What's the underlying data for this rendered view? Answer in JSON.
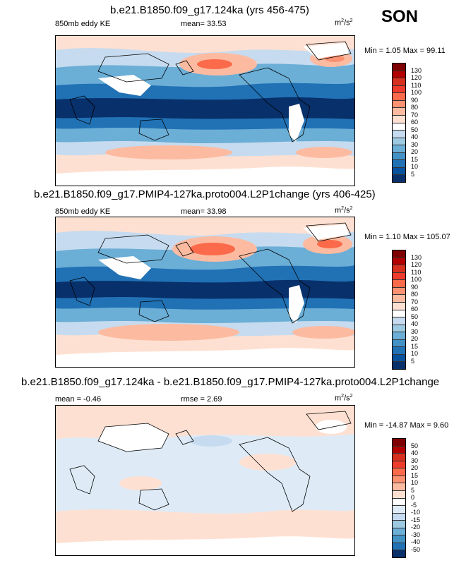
{
  "season": "SON",
  "panels": [
    {
      "title": "b.e21.B1850.f09_g17.124ka (yrs 456-475)",
      "left_label": "850mb eddy KE",
      "center_label": "mean=  33.53",
      "units": {
        "base": "m",
        "exp1": "2",
        "mid": "/s",
        "exp2": "2"
      },
      "minmax": "Min =  1.05 Max = 99.11",
      "colorbar_labels": [
        "130",
        "120",
        "110",
        "100",
        "90",
        "80",
        "70",
        "60",
        "50",
        "40",
        "30",
        "20",
        "15",
        "10",
        "5"
      ]
    },
    {
      "title": "b.e21.B1850.f09_g17.PMIP4-127ka.proto004.L2P1change (yrs 406-425)",
      "left_label": "850mb eddy KE",
      "center_label": "mean=  33.98",
      "units": {
        "base": "m",
        "exp1": "2",
        "mid": "/s",
        "exp2": "2"
      },
      "minmax": "Min =  1.10 Max = 105.07",
      "colorbar_labels": [
        "130",
        "120",
        "110",
        "100",
        "90",
        "80",
        "70",
        "60",
        "50",
        "40",
        "30",
        "20",
        "15",
        "10",
        "5"
      ]
    },
    {
      "title": "b.e21.B1850.f09_g17.124ka - b.e21.B1850.f09_g17.PMIP4-127ka.proto004.L2P1change",
      "left_label": "mean =  -0.46",
      "center_label": "rmse =   2.69",
      "units": {
        "base": "m",
        "exp1": "2",
        "mid": "/s",
        "exp2": "2"
      },
      "minmax": "Min = -14.87 Max =   9.60",
      "colorbar_labels": [
        "50",
        "40",
        "30",
        "20",
        "15",
        "10",
        "5",
        "0",
        "-5",
        "-10",
        "-15",
        "-20",
        "-30",
        "-40",
        "-50"
      ]
    }
  ],
  "colors": {
    "abs_scale": [
      "#7f0000",
      "#b30000",
      "#d7301f",
      "#ef3b2c",
      "#fb6a4a",
      "#fc9272",
      "#fcbba1",
      "#fee0d2",
      "#ffffff",
      "#c6dbef",
      "#9ecae1",
      "#6baed6",
      "#4292c6",
      "#2171b5",
      "#08519c",
      "#08306b"
    ],
    "diff_scale": [
      "#7f0000",
      "#b30000",
      "#d7301f",
      "#ef3b2c",
      "#fb6a4a",
      "#fc9272",
      "#fcbba1",
      "#fee0d2",
      "#ffffff",
      "#deebf7",
      "#c6dbef",
      "#9ecae1",
      "#6baed6",
      "#4292c6",
      "#2171b5",
      "#08306b"
    ]
  }
}
